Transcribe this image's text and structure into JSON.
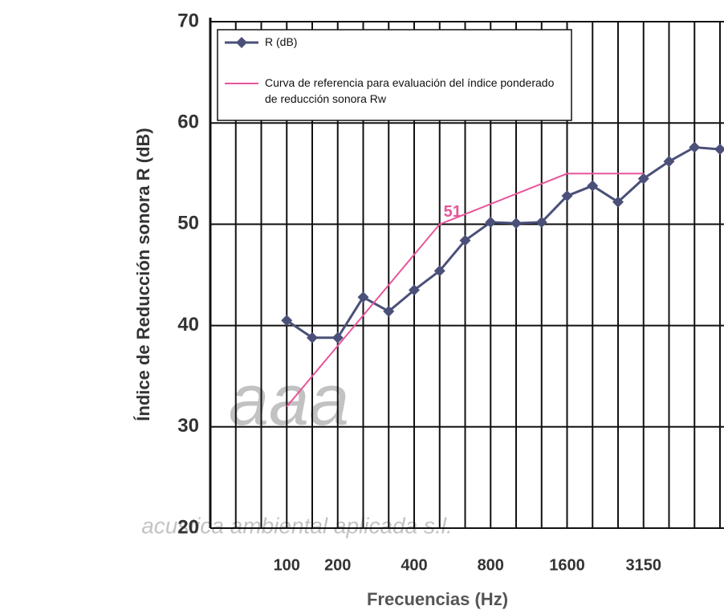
{
  "chart_data": {
    "type": "line",
    "y_label": "Índice de Reducción sonora R (dB)",
    "x_label": "Frecuencias (Hz)",
    "categories": [
      null,
      null,
      null,
      "100",
      null,
      "200",
      null,
      null,
      "400",
      null,
      null,
      "800",
      null,
      null,
      "1600",
      null,
      null,
      "3150",
      null,
      null,
      null
    ],
    "series": [
      {
        "name": "R (dB)",
        "color": "#4b5079",
        "marker": "diamond",
        "values": [
          null,
          null,
          null,
          40.5,
          38.8,
          38.8,
          42.8,
          41.4,
          43.5,
          45.4,
          48.4,
          50.2,
          50.1,
          50.2,
          52.8,
          53.8,
          52.2,
          54.5,
          56.2,
          57.6,
          57.4
        ]
      },
      {
        "name": "Curva de referencia para evaluación del índice ponderado de reducción sonora Rw",
        "color": "#e8559a",
        "values": [
          null,
          null,
          null,
          32,
          35,
          38,
          41,
          44,
          47,
          50,
          51,
          52,
          53,
          54,
          55,
          55,
          55,
          55,
          null,
          null,
          null
        ]
      }
    ],
    "annotations": [
      {
        "text": "51",
        "category_index": 9,
        "value": 51
      }
    ],
    "watermark": [
      "aaa",
      "acustica ambiental aplicada s.l."
    ],
    "ylim": [
      20,
      70
    ],
    "yticks": [
      20,
      30,
      40,
      50,
      60,
      70
    ],
    "grid": true,
    "legend": "upper left"
  }
}
